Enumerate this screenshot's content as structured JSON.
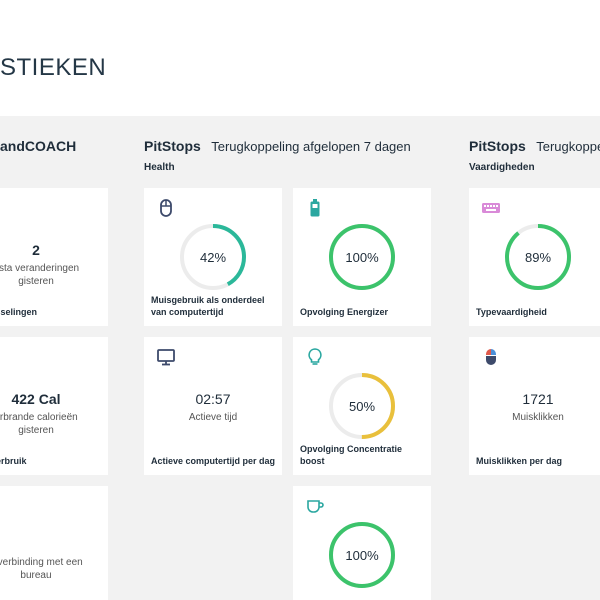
{
  "page": {
    "title": "STIEKEN"
  },
  "sections": {
    "left": {
      "title": "andCOACH"
    },
    "health": {
      "title": "PitStops",
      "description": "Terugkoppeling afgelopen 7 dagen",
      "subtitle": "Health"
    },
    "skills": {
      "title": "PitStops",
      "description": "Terugkoppel",
      "subtitle": "Vaardigheden"
    }
  },
  "cards": {
    "left_switches": {
      "value": "2",
      "label_line1": "t-sta veranderingen",
      "label_line2": "gisteren",
      "caption": "wisselingen"
    },
    "left_calories": {
      "value": "422 Cal",
      "label_line1": "erbrande calorieën",
      "label_line2": "gisteren",
      "caption": "everbruik"
    },
    "left_connection": {
      "label_line1": "n verbinding met een",
      "label_line2": "bureau"
    },
    "mouse_usage": {
      "icon": "mouse-icon",
      "percent_text": "42%",
      "percent": 42,
      "color": "#2bb89a",
      "caption": "Muisgebruik als onderdeel van computertijd"
    },
    "energizer": {
      "icon": "battery-icon",
      "percent_text": "100%",
      "percent": 100,
      "color": "#3cc36b",
      "caption": "Opvolging Energizer"
    },
    "typing": {
      "icon": "keyboard-icon",
      "percent_text": "89%",
      "percent": 89,
      "color": "#3cc36b",
      "caption": "Typevaardigheid"
    },
    "active_time": {
      "icon": "monitor-icon",
      "value": "02:57",
      "label": "Actieve tijd",
      "caption": "Actieve computertijd per dag"
    },
    "concentration": {
      "icon": "lightbulb-icon",
      "percent_text": "50%",
      "percent": 50,
      "color": "#e9c03c",
      "caption": "Opvolging Concentratie boost"
    },
    "clicks": {
      "icon": "mouse-color-icon",
      "value": "1721",
      "label": "Muisklikken",
      "caption": "Muisklikken per dag"
    },
    "coffee": {
      "icon": "coffee-icon",
      "percent_text": "100%",
      "percent": 100,
      "color": "#3cc36b"
    }
  },
  "colors": {
    "track": "#ececec",
    "icon_primary": "#3d4a6b",
    "icon_teal": "#2aa7a0",
    "icon_pink": "#d98ad8"
  }
}
